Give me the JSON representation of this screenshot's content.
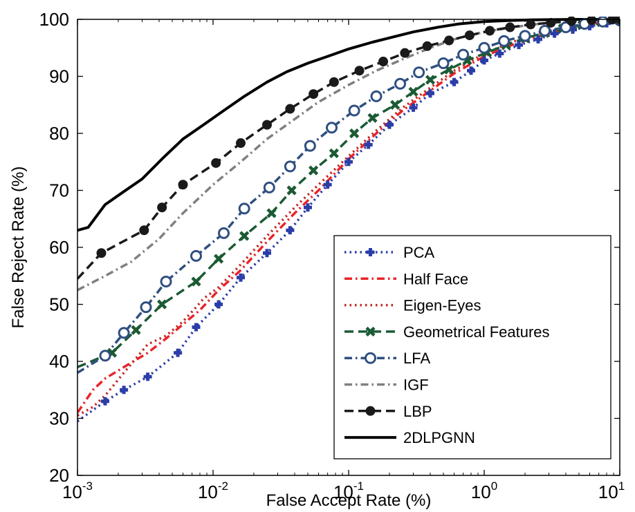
{
  "chart_data": {
    "type": "line",
    "title": "",
    "xlabel": "False Accept Rate (%)",
    "ylabel": "False Reject Rate (%)",
    "x_scale": "log",
    "xlim": [
      0.001,
      10
    ],
    "ylim": [
      20,
      100
    ],
    "x_ticks": [
      0.001,
      0.01,
      0.1,
      1,
      10
    ],
    "x_tick_labels": [
      {
        "base": "10",
        "exp": "-3"
      },
      {
        "base": "10",
        "exp": "-2"
      },
      {
        "base": "10",
        "exp": "-1"
      },
      {
        "base": "10",
        "exp": "0"
      },
      {
        "base": "10",
        "exp": "1"
      }
    ],
    "y_ticks": [
      20,
      30,
      40,
      50,
      60,
      70,
      80,
      90,
      100
    ],
    "y_tick_labels": [
      "20",
      "30",
      "40",
      "50",
      "60",
      "70",
      "80",
      "90",
      "100"
    ],
    "grid": false,
    "legend_position": "bottom-right",
    "series": [
      {
        "name": "PCA",
        "color": "#2b3da8",
        "dash": "dot",
        "marker": "plus",
        "x": [
          0.001,
          0.0016,
          0.0022,
          0.0033,
          0.0055,
          0.0075,
          0.011,
          0.016,
          0.025,
          0.037,
          0.05,
          0.07,
          0.1,
          0.14,
          0.2,
          0.3,
          0.4,
          0.6,
          0.8,
          1.0,
          1.3,
          1.8,
          2.5,
          3.3,
          4.5,
          6,
          8,
          10
        ],
        "y": [
          29.5,
          33,
          35,
          37.3,
          41.5,
          46,
          50,
          54.7,
          59,
          63,
          67,
          71,
          75,
          78,
          81.5,
          84.5,
          87,
          89,
          91,
          92.8,
          94,
          95.5,
          96.5,
          97.5,
          98.2,
          98.8,
          99.3,
          99.6
        ]
      },
      {
        "name": "Half Face",
        "color": "#e8242a",
        "dash": "dashdot",
        "marker": "none",
        "x": [
          0.001,
          0.0013,
          0.0016,
          0.0022,
          0.0033,
          0.0045,
          0.006,
          0.008,
          0.011,
          0.016,
          0.025,
          0.04,
          0.06,
          0.1,
          0.16,
          0.25,
          0.4,
          0.6,
          1.0,
          1.6,
          2.5,
          4,
          6,
          10
        ],
        "y": [
          31,
          35,
          37,
          39,
          41.5,
          44,
          46.5,
          49,
          52.5,
          56,
          61,
          66,
          70,
          75.5,
          80,
          84,
          87.5,
          90.5,
          93.5,
          95.5,
          97,
          98.3,
          99.1,
          99.7
        ]
      },
      {
        "name": "Eigen-Eyes",
        "color": "#c02a24",
        "dash": "dot",
        "marker": "none",
        "x": [
          0.001,
          0.0013,
          0.0016,
          0.0022,
          0.0033,
          0.0045,
          0.006,
          0.0075,
          0.0085,
          0.011,
          0.016,
          0.025,
          0.04,
          0.06,
          0.1,
          0.16,
          0.25,
          0.4,
          0.6,
          1.0,
          1.6,
          2.5,
          4,
          6,
          10
        ],
        "y": [
          30.5,
          32,
          34,
          38,
          43,
          44.5,
          47,
          49.5,
          51,
          53,
          57,
          62,
          67,
          71,
          76,
          80.5,
          84.5,
          88,
          91,
          94,
          96,
          97.5,
          98.5,
          99.2,
          99.7
        ]
      },
      {
        "name": "Geometrical Features",
        "color": "#1c5a34",
        "dash": "dash",
        "marker": "x",
        "x": [
          0.001,
          0.0018,
          0.0027,
          0.0042,
          0.0075,
          0.011,
          0.017,
          0.027,
          0.038,
          0.055,
          0.078,
          0.11,
          0.15,
          0.22,
          0.3,
          0.4,
          0.55,
          0.75,
          1.05,
          1.45,
          2.0,
          2.8,
          3.8,
          5.3,
          7.3,
          10
        ],
        "y": [
          39,
          41.5,
          45.5,
          50,
          54,
          58,
          62,
          66,
          70,
          73.5,
          76.5,
          80,
          82.7,
          85,
          87.3,
          89.4,
          91.2,
          92.8,
          94.2,
          95.5,
          96.7,
          97.6,
          98.4,
          99,
          99.5,
          99.8
        ]
      },
      {
        "name": "LFA",
        "color": "#2f4f80",
        "dash": "dashdot",
        "marker": "circle",
        "x": [
          0.001,
          0.0016,
          0.0022,
          0.0032,
          0.0045,
          0.0075,
          0.012,
          0.017,
          0.026,
          0.037,
          0.052,
          0.075,
          0.11,
          0.16,
          0.24,
          0.33,
          0.5,
          0.7,
          1.0,
          1.4,
          2.0,
          2.8,
          4,
          5.5,
          7.5,
          10
        ],
        "y": [
          38,
          41,
          45,
          49.5,
          54,
          58.5,
          62.5,
          66.8,
          70.5,
          74.2,
          77.8,
          81,
          84,
          86.5,
          88.7,
          90.7,
          92.3,
          93.8,
          95,
          96.2,
          97.1,
          98,
          98.6,
          99.2,
          99.6,
          99.8
        ]
      },
      {
        "name": "IGF",
        "color": "#808080",
        "dash": "dashdot",
        "marker": "none",
        "x": [
          0.001,
          0.0016,
          0.0025,
          0.004,
          0.006,
          0.01,
          0.016,
          0.025,
          0.04,
          0.06,
          0.1,
          0.16,
          0.25,
          0.4,
          0.6,
          1.0,
          1.6,
          2.5,
          4,
          6,
          10
        ],
        "y": [
          52.5,
          55,
          57.5,
          61.5,
          66,
          71,
          75,
          79,
          82.5,
          85.5,
          88.5,
          91,
          93,
          95,
          96.5,
          97.8,
          98.6,
          99.2,
          99.6,
          99.8,
          99.9
        ]
      },
      {
        "name": "LBP",
        "color": "#1a1a1a",
        "dash": "dash",
        "marker": "dot",
        "x": [
          0.001,
          0.0015,
          0.0031,
          0.0042,
          0.006,
          0.0105,
          0.016,
          0.025,
          0.037,
          0.055,
          0.078,
          0.12,
          0.18,
          0.26,
          0.38,
          0.55,
          0.78,
          1.1,
          1.55,
          2.2,
          3.1,
          4.4,
          6.2,
          8.8,
          10
        ],
        "y": [
          54.5,
          59,
          63,
          67,
          71,
          74.8,
          78.3,
          81.5,
          84.3,
          86.9,
          89,
          91,
          92.6,
          94.1,
          95.3,
          96.3,
          97.2,
          98,
          98.6,
          99.1,
          99.4,
          99.7,
          99.85,
          99.95,
          100
        ]
      },
      {
        "name": "2DLPGNN",
        "color": "#000000",
        "dash": "solid",
        "marker": "none",
        "x": [
          0.001,
          0.0012,
          0.0016,
          0.0022,
          0.003,
          0.0042,
          0.006,
          0.0085,
          0.012,
          0.017,
          0.025,
          0.035,
          0.05,
          0.07,
          0.1,
          0.15,
          0.22,
          0.3,
          0.45,
          0.65,
          1.0,
          1.5,
          2.2,
          3.3,
          5,
          7.5,
          10
        ],
        "y": [
          63,
          63.5,
          67.5,
          69.8,
          72,
          75.5,
          79,
          81.5,
          84,
          86.5,
          89,
          90.8,
          92.3,
          93.5,
          94.8,
          96,
          97,
          97.8,
          98.6,
          99.2,
          99.6,
          99.8,
          99.9,
          99.95,
          100,
          100,
          100
        ]
      }
    ]
  }
}
